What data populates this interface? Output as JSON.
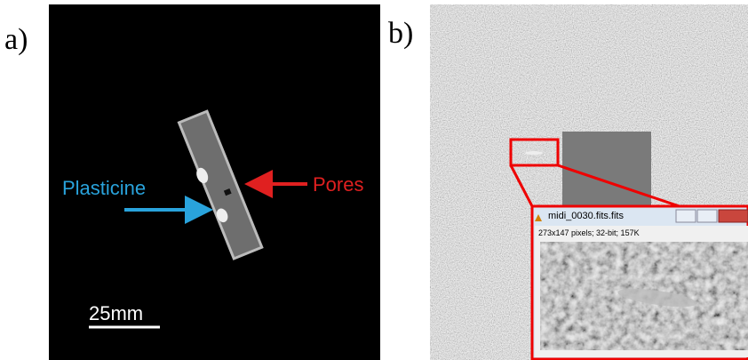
{
  "panel_a": {
    "label": "a)",
    "plasticine": "Plasticine",
    "pores": "Pores",
    "scale": "25mm"
  },
  "panel_b": {
    "label": "b)",
    "window_title": "midi_0030.fits.fits",
    "window_info": "273x147 pixels; 32-bit; 157K"
  }
}
